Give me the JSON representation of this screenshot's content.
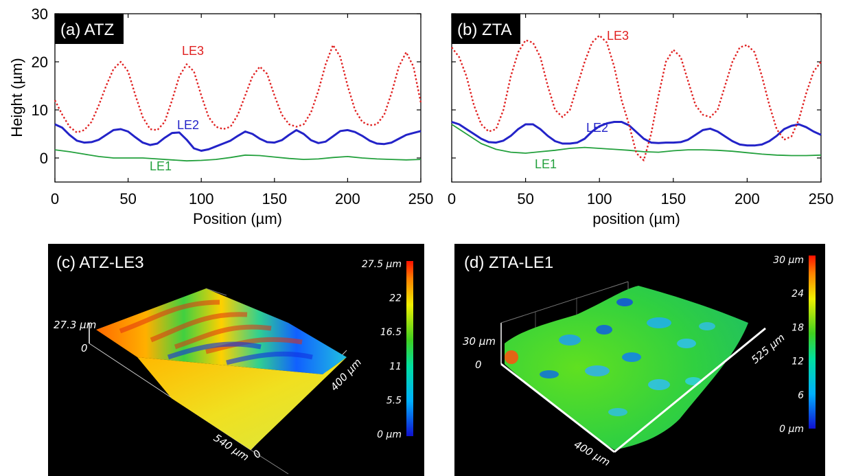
{
  "chart_data": [
    {
      "type": "line",
      "title": "(a) ATZ",
      "xlabel": "Position (µm)",
      "ylabel": "Height (µm)",
      "xlim": [
        0,
        250
      ],
      "ylim": [
        -5,
        30
      ],
      "xticks": [
        "0",
        "50",
        "100",
        "150",
        "200",
        "250"
      ],
      "yticks": [
        "0",
        "10",
        "20",
        "30"
      ],
      "series": [
        {
          "name": "LE3",
          "color": "#e02020",
          "style": "dotted",
          "x": [
            0,
            5,
            10,
            15,
            20,
            25,
            30,
            35,
            40,
            45,
            50,
            55,
            60,
            65,
            70,
            75,
            80,
            85,
            90,
            95,
            100,
            105,
            110,
            115,
            120,
            125,
            130,
            135,
            140,
            145,
            150,
            155,
            160,
            165,
            170,
            175,
            180,
            185,
            190,
            195,
            200,
            205,
            210,
            215,
            220,
            225,
            230,
            235,
            240,
            245,
            250
          ],
          "y": [
            12,
            9,
            6.5,
            5.3,
            5.8,
            7.5,
            11,
            15,
            18.5,
            20,
            18,
            13,
            8.5,
            6,
            5.8,
            7.5,
            12,
            17,
            19.5,
            18,
            13,
            8.5,
            6.5,
            6,
            6.5,
            9,
            13,
            17,
            19,
            17.5,
            13,
            9,
            7,
            6.5,
            7,
            9.5,
            14,
            19.5,
            23.5,
            21,
            15,
            10,
            7.5,
            6.8,
            7,
            9,
            13.5,
            19,
            22,
            19,
            11.5
          ]
        },
        {
          "name": "LE2",
          "color": "#2323c8",
          "style": "solid",
          "x": [
            0,
            5,
            10,
            15,
            20,
            25,
            30,
            35,
            40,
            45,
            50,
            55,
            60,
            65,
            70,
            75,
            80,
            85,
            90,
            95,
            100,
            105,
            110,
            115,
            120,
            125,
            130,
            135,
            140,
            145,
            150,
            155,
            160,
            165,
            170,
            175,
            180,
            185,
            190,
            195,
            200,
            205,
            210,
            215,
            220,
            225,
            230,
            235,
            240,
            245,
            250
          ],
          "y": [
            7,
            6.3,
            4.8,
            3.6,
            3.2,
            3.3,
            3.8,
            4.8,
            5.8,
            6,
            5.5,
            4.3,
            3.2,
            2.7,
            3,
            4.2,
            5.2,
            5.3,
            3.8,
            2,
            1.5,
            1.8,
            2.4,
            3,
            3.6,
            4.6,
            5.5,
            5,
            4,
            3.3,
            3.2,
            3.7,
            4.8,
            5.8,
            5,
            3.7,
            3.1,
            3.4,
            4.5,
            5.6,
            5.8,
            5.4,
            4.6,
            3.6,
            3,
            2.9,
            3.2,
            4,
            4.8,
            5.2,
            5.6
          ]
        },
        {
          "name": "LE1",
          "color": "#22a03c",
          "style": "solid",
          "x": [
            0,
            10,
            20,
            30,
            40,
            50,
            60,
            70,
            80,
            90,
            100,
            110,
            120,
            130,
            140,
            150,
            160,
            170,
            180,
            190,
            200,
            210,
            220,
            230,
            240,
            250
          ],
          "y": [
            1.7,
            1.3,
            0.8,
            0.3,
            0,
            0,
            0,
            -0.2,
            -0.4,
            -0.6,
            -0.5,
            -0.3,
            0.1,
            0.6,
            0.5,
            0.2,
            -0.1,
            -0.3,
            -0.2,
            0.1,
            0.3,
            0,
            -0.2,
            -0.3,
            -0.4,
            -0.3
          ]
        }
      ]
    },
    {
      "type": "line",
      "title": "(b) ZTA",
      "xlabel": "position (µm)",
      "ylabel": "",
      "xlim": [
        0,
        250
      ],
      "ylim": [
        -5,
        30
      ],
      "xticks": [
        "0",
        "50",
        "100",
        "150",
        "200",
        "250"
      ],
      "yticks": [],
      "series": [
        {
          "name": "LE3",
          "color": "#e02020",
          "style": "dotted",
          "x": [
            0,
            5,
            10,
            15,
            20,
            25,
            30,
            35,
            40,
            45,
            50,
            55,
            60,
            65,
            70,
            75,
            80,
            85,
            90,
            95,
            100,
            105,
            110,
            115,
            120,
            125,
            130,
            135,
            140,
            145,
            150,
            155,
            160,
            165,
            170,
            175,
            180,
            185,
            190,
            195,
            200,
            205,
            210,
            215,
            220,
            225,
            230,
            235,
            240,
            245,
            250
          ],
          "y": [
            23,
            21,
            17,
            11,
            7,
            5.5,
            6,
            10,
            17,
            22,
            24.5,
            24,
            21,
            15,
            10,
            8.5,
            10,
            15,
            20,
            24,
            25.5,
            24,
            19,
            12,
            7,
            1,
            -0.5,
            5,
            13,
            20,
            22.5,
            21,
            16,
            11,
            9,
            8.5,
            10,
            15,
            20,
            23,
            23.5,
            22,
            17,
            11,
            6,
            3.8,
            4.5,
            8,
            13.5,
            18,
            20
          ]
        },
        {
          "name": "LE2",
          "color": "#2323c8",
          "style": "solid",
          "x": [
            0,
            5,
            10,
            15,
            20,
            25,
            30,
            35,
            40,
            45,
            50,
            55,
            60,
            65,
            70,
            75,
            80,
            85,
            90,
            95,
            100,
            105,
            110,
            115,
            120,
            125,
            130,
            135,
            140,
            145,
            150,
            155,
            160,
            165,
            170,
            175,
            180,
            185,
            190,
            195,
            200,
            205,
            210,
            215,
            220,
            225,
            230,
            235,
            240,
            245,
            250
          ],
          "y": [
            7.5,
            7,
            6,
            5,
            4,
            3.3,
            3.2,
            3.6,
            4.6,
            6,
            7,
            7,
            6,
            4.6,
            3.5,
            3,
            3,
            3.2,
            4,
            5.5,
            6.6,
            7.2,
            7.5,
            7.5,
            6.8,
            5.4,
            4,
            3.2,
            3.1,
            3.2,
            3.2,
            3.3,
            3.8,
            4.8,
            5.8,
            6.1,
            5.5,
            4.5,
            3.5,
            2.8,
            2.6,
            2.6,
            2.8,
            3.5,
            4.6,
            6,
            6.7,
            7,
            6.4,
            5.5,
            4.8
          ]
        },
        {
          "name": "LE1",
          "color": "#22a03c",
          "style": "solid",
          "x": [
            0,
            10,
            20,
            30,
            40,
            50,
            60,
            70,
            80,
            90,
            100,
            110,
            120,
            130,
            140,
            150,
            160,
            170,
            180,
            190,
            200,
            210,
            220,
            230,
            240,
            250
          ],
          "y": [
            7,
            5,
            3,
            1.8,
            1.2,
            1,
            1.3,
            1.6,
            2,
            2.2,
            2,
            1.8,
            1.6,
            1.3,
            1.2,
            1.5,
            1.7,
            1.7,
            1.6,
            1.4,
            1.1,
            0.8,
            0.6,
            0.5,
            0.5,
            0.6
          ]
        }
      ]
    },
    {
      "type": "heatmap",
      "title": "(c) ATZ-LE3",
      "z_axis_label": "27.3 µm",
      "z_axis_zero": "0",
      "x_axis_label": "540 µm",
      "y_axis_label": "400 µm",
      "x_axis_zero": "0",
      "colorbar_ticks": [
        "27.5 µm",
        "22",
        "16.5",
        "11",
        "5.5",
        "0 µm"
      ]
    },
    {
      "type": "heatmap",
      "title": "(d) ZTA-LE1",
      "z_axis_label": "30 µm",
      "z_axis_zero": "0",
      "x_axis_label": "400 µm",
      "y_axis_label": "525 µm",
      "colorbar_ticks": [
        "30 µm",
        "24",
        "18",
        "12",
        "6",
        "0 µm"
      ]
    }
  ]
}
